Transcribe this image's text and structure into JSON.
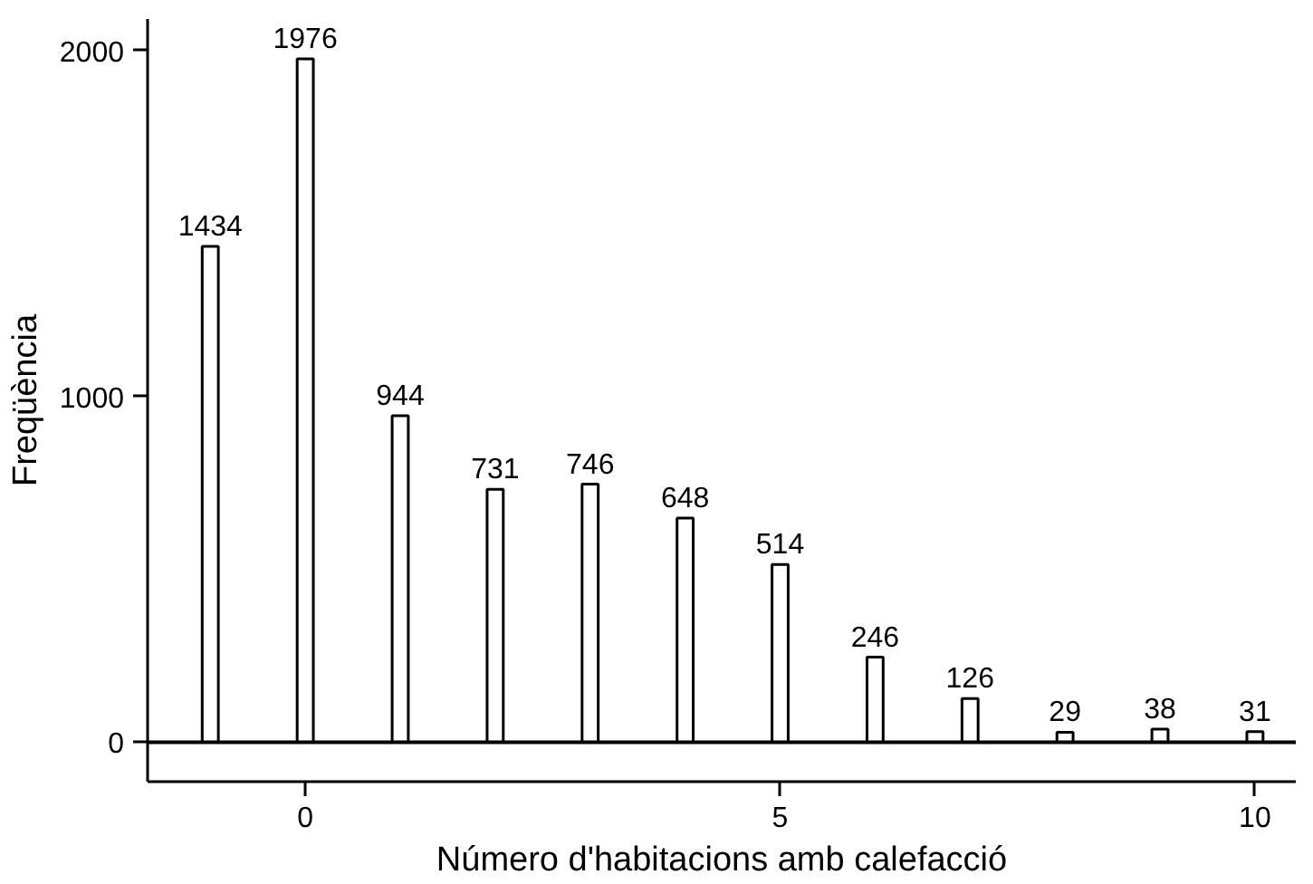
{
  "chart_data": {
    "type": "bar",
    "xlabel": "Número d'habitacions amb calefacció",
    "ylabel": "Freqüència",
    "x": [
      -1,
      0,
      1,
      2,
      3,
      4,
      5,
      6,
      7,
      8,
      9,
      10
    ],
    "values": [
      1434,
      1976,
      944,
      731,
      746,
      648,
      514,
      246,
      126,
      29,
      38,
      31
    ],
    "color": "#ffffff",
    "data_labels": true,
    "xlim": [
      -1.66,
      10.43
    ],
    "ylim": [
      -114,
      2091
    ],
    "xticks": [
      0,
      5,
      10
    ],
    "yticks": [
      0,
      1000,
      2000
    ],
    "ref_lines": [
      {
        "axis": "y",
        "value": 0
      }
    ],
    "grid": false
  }
}
